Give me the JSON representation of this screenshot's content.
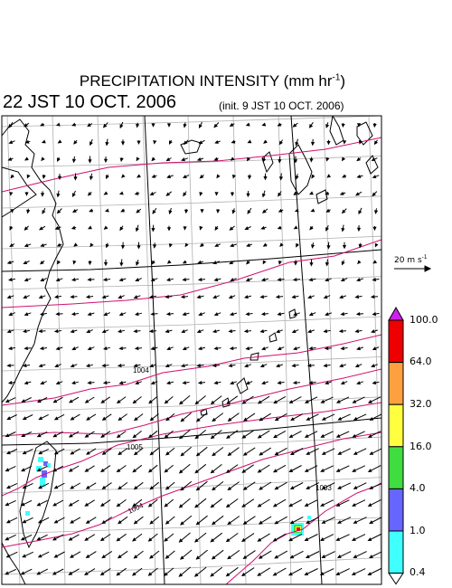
{
  "header": {
    "title_main": "PRECIPITATION INTENSITY (mm hr",
    "title_exp": "-1",
    "title_close": ")",
    "valid_time": "22 JST 10 OCT. 2006",
    "init_time": "(init. 9 JST 10 OCT. 2006)"
  },
  "reference_vector": {
    "label": "20 m s",
    "exp": "-1"
  },
  "colorbar": {
    "labels": [
      "100.0",
      "64.0",
      "32.0",
      "16.0",
      "4.0",
      "1.0",
      "0.4"
    ],
    "colors": [
      "#ee0000",
      "#ffa040",
      "#ffff40",
      "#40dd40",
      "#6666ff",
      "#40ffff"
    ],
    "top_arrow_color": "#cc22ee"
  },
  "isobars": [
    {
      "label": "1004"
    },
    {
      "label": "1005"
    },
    {
      "label": "1004"
    },
    {
      "label": "1003"
    }
  ],
  "colors": {
    "isobar": "#d01070",
    "grid": "#b0b0b0",
    "coast": "#000000"
  }
}
